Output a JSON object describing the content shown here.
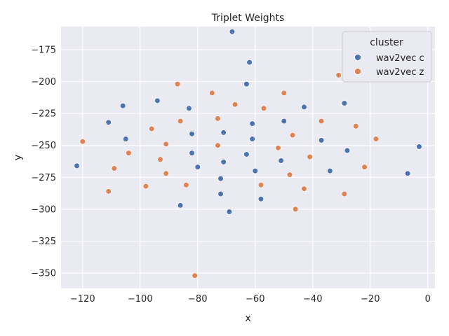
{
  "chart_data": {
    "type": "scatter",
    "title": "Triplet Weights",
    "xlabel": "x",
    "ylabel": "y",
    "xlim": [
      -127.5,
      2.5
    ],
    "ylim": [
      -362,
      -157
    ],
    "xticks": [
      -120,
      -100,
      -80,
      -60,
      -40,
      -20,
      0
    ],
    "yticks": [
      -350,
      -325,
      -300,
      -275,
      -250,
      -225,
      -200,
      -175
    ],
    "xtick_labels": [
      "−120",
      "−100",
      "−80",
      "−60",
      "−40",
      "−20",
      "0"
    ],
    "ytick_labels": [
      "−350",
      "−325",
      "−300",
      "−275",
      "−250",
      "−225",
      "−200",
      "−175"
    ],
    "grid": true,
    "legend": {
      "title": "cluster",
      "placement": "top-right"
    },
    "series": [
      {
        "name": "wav2vec c",
        "color": "#4c72b0",
        "points": [
          [
            -68,
            -161
          ],
          [
            -62,
            -185
          ],
          [
            -63,
            -202
          ],
          [
            -106,
            -219
          ],
          [
            -83,
            -221
          ],
          [
            -94,
            -215
          ],
          [
            -43,
            -220
          ],
          [
            -29,
            -217
          ],
          [
            -111,
            -232
          ],
          [
            -61,
            -233
          ],
          [
            -50,
            -231
          ],
          [
            -71,
            -240
          ],
          [
            -82,
            -241
          ],
          [
            -105,
            -245
          ],
          [
            -61,
            -245
          ],
          [
            -37,
            -246
          ],
          [
            -28,
            -254
          ],
          [
            -3,
            -251
          ],
          [
            -82,
            -256
          ],
          [
            -63,
            -257
          ],
          [
            -122,
            -266
          ],
          [
            -80,
            -267
          ],
          [
            -71,
            -263
          ],
          [
            -51,
            -262
          ],
          [
            -60,
            -270
          ],
          [
            -34,
            -270
          ],
          [
            -7,
            -272
          ],
          [
            -72,
            -276
          ],
          [
            -72,
            -288
          ],
          [
            -58,
            -292
          ],
          [
            -86,
            -297
          ],
          [
            -69,
            -302
          ]
        ]
      },
      {
        "name": "wav2vec z",
        "color": "#dd8452",
        "points": [
          [
            -31,
            -195
          ],
          [
            -87,
            -202
          ],
          [
            -75,
            -209
          ],
          [
            -50,
            -209
          ],
          [
            -67,
            -218
          ],
          [
            -57,
            -221
          ],
          [
            -73,
            -229
          ],
          [
            -86,
            -231
          ],
          [
            -37,
            -231
          ],
          [
            -25,
            -235
          ],
          [
            -96,
            -237
          ],
          [
            -47,
            -242
          ],
          [
            -18,
            -245
          ],
          [
            -120,
            -247
          ],
          [
            -91,
            -249
          ],
          [
            -73,
            -250
          ],
          [
            -52,
            -252
          ],
          [
            -104,
            -256
          ],
          [
            -93,
            -261
          ],
          [
            -41,
            -259
          ],
          [
            -109,
            -268
          ],
          [
            -22,
            -267
          ],
          [
            -91,
            -272
          ],
          [
            -48,
            -273
          ],
          [
            -84,
            -281
          ],
          [
            -58,
            -281
          ],
          [
            -98,
            -282
          ],
          [
            -43,
            -284
          ],
          [
            -111,
            -286
          ],
          [
            -29,
            -288
          ],
          [
            -46,
            -300
          ],
          [
            -81,
            -352
          ]
        ]
      }
    ]
  }
}
